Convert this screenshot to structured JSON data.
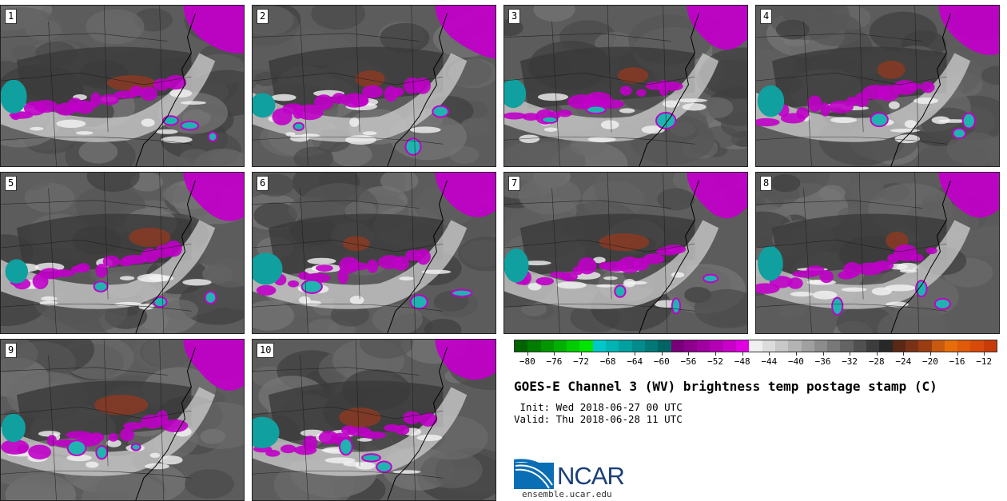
{
  "panels": [
    {
      "label": "1"
    },
    {
      "label": "2"
    },
    {
      "label": "3"
    },
    {
      "label": "4"
    },
    {
      "label": "5"
    },
    {
      "label": "6"
    },
    {
      "label": "7"
    },
    {
      "label": "8"
    },
    {
      "label": "9"
    },
    {
      "label": "10"
    }
  ],
  "colorbar": {
    "colors": [
      "#006400",
      "#007d00",
      "#009600",
      "#00b000",
      "#00cc00",
      "#00e400",
      "#00c8c8",
      "#00b4b4",
      "#00a0a0",
      "#008c8c",
      "#007878",
      "#006464",
      "#780078",
      "#8c008c",
      "#a000a0",
      "#b400b4",
      "#c800c8",
      "#e000e0",
      "#f0f0f0",
      "#dcdcdc",
      "#c8c8c8",
      "#b4b4b4",
      "#a0a0a0",
      "#8c8c8c",
      "#787878",
      "#646464",
      "#505050",
      "#3c3c3c",
      "#282828",
      "#5a2814",
      "#7a3216",
      "#9a3c14",
      "#c85a10",
      "#e66e0a",
      "#e05a0a",
      "#d84a0a",
      "#c83c0a"
    ],
    "tick_labels": [
      "−80",
      "−76",
      "−72",
      "−68",
      "−64",
      "−60",
      "−56",
      "−52",
      "−48",
      "−44",
      "−40",
      "−36",
      "−32",
      "−28",
      "−24",
      "−20",
      "−16",
      "−12"
    ],
    "min": -82,
    "max": -10
  },
  "title": "GOES-E Channel 3 (WV) brightness temp postage stamp (C)",
  "init_line": " Init: Wed 2018-06-27 00 UTC",
  "valid_line": "Valid: Thu 2018-06-28 11 UTC",
  "logo_text": "NCAR",
  "url": "ensemble.ucar.edu"
}
